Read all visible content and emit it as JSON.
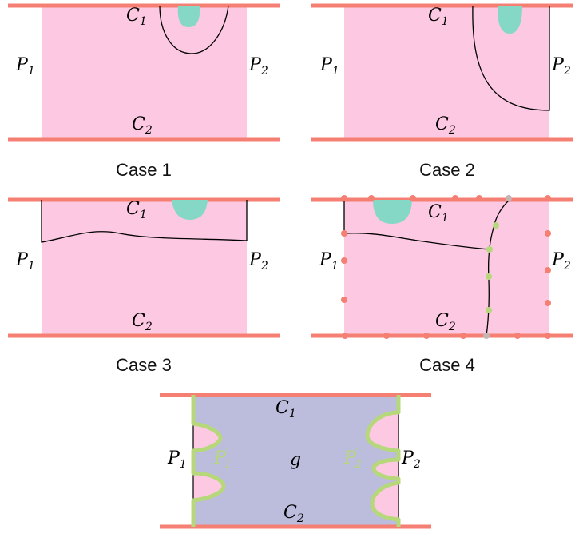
{
  "labels": {
    "C": "C",
    "P": "P",
    "g": "g",
    "one": "1",
    "two": "2",
    "prime": "′"
  },
  "captions": {
    "case1": "Case 1",
    "case2": "Case 2",
    "case3": "Case 3",
    "case4": "Case 4"
  },
  "colors": {
    "boundary_bar": "#f47f72",
    "region_fill": "#fdc8e2",
    "disk_fill": "#86d8c6",
    "green_marker": "#b6d87a",
    "merged_region": "#bcbcdc"
  }
}
